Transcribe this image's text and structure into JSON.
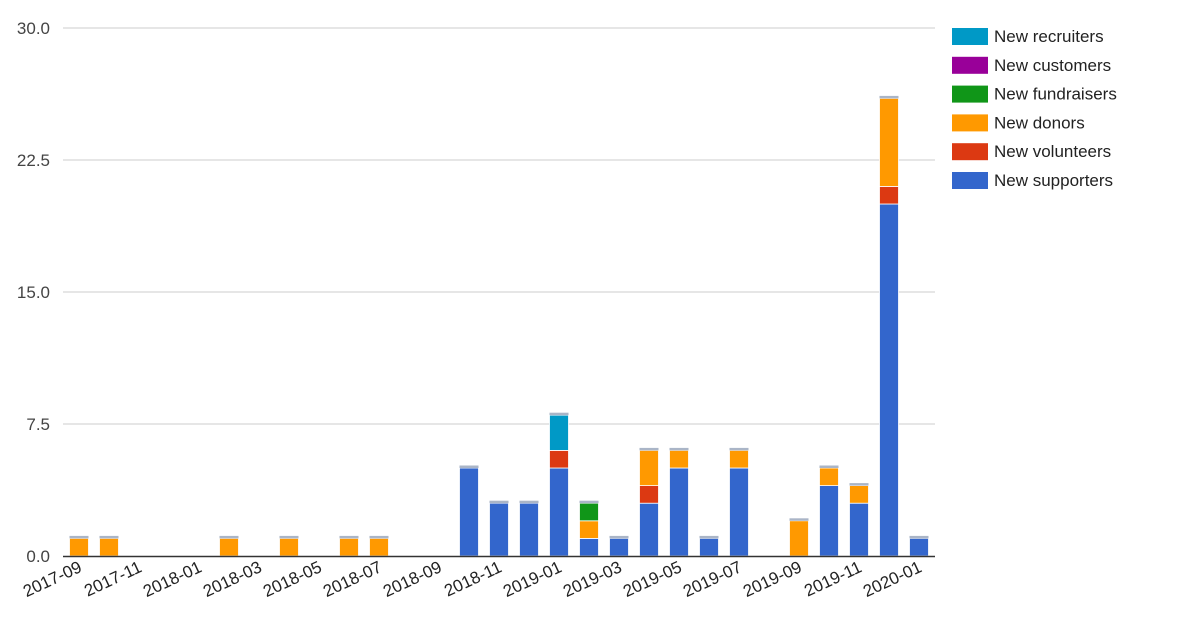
{
  "chart_data": {
    "type": "bar",
    "stacked": true,
    "title": "",
    "xlabel": "",
    "ylabel": "",
    "ylim": [
      0,
      30
    ],
    "y_ticks": [
      "0.0",
      "7.5",
      "15.0",
      "22.5",
      "30.0"
    ],
    "grid": true,
    "legend_position": "right",
    "x_tick_labels": [
      "2017-09",
      "2017-11",
      "2018-01",
      "2018-03",
      "2018-05",
      "2018-07",
      "2018-09",
      "2018-11",
      "2019-01",
      "2019-03",
      "2019-05",
      "2019-07",
      "2019-09",
      "2019-11",
      "2020-01"
    ],
    "categories": [
      "2017-09",
      "2017-10",
      "2017-11",
      "2017-12",
      "2018-01",
      "2018-02",
      "2018-03",
      "2018-04",
      "2018-05",
      "2018-06",
      "2018-07",
      "2018-08",
      "2018-09",
      "2018-10",
      "2018-11",
      "2018-12",
      "2019-01",
      "2019-02",
      "2019-03",
      "2019-04",
      "2019-05",
      "2019-06",
      "2019-07",
      "2019-08",
      "2019-09",
      "2019-10",
      "2019-11",
      "2019-12",
      "2020-01"
    ],
    "series": [
      {
        "name": "New supporters",
        "color": "#3366cc",
        "values": [
          0,
          0,
          0,
          0,
          0,
          0,
          0,
          0,
          0,
          0,
          0,
          0,
          0,
          5,
          3,
          3,
          5,
          1,
          1,
          3,
          5,
          1,
          5,
          0,
          0,
          4,
          3,
          20,
          1
        ]
      },
      {
        "name": "New volunteers",
        "color": "#dc3912",
        "values": [
          0,
          0,
          0,
          0,
          0,
          0,
          0,
          0,
          0,
          0,
          0,
          0,
          0,
          0,
          0,
          0,
          1,
          0,
          0,
          1,
          0,
          0,
          0,
          0,
          0,
          0,
          0,
          1,
          0
        ]
      },
      {
        "name": "New donors",
        "color": "#ff9900",
        "values": [
          1,
          1,
          0,
          0,
          0,
          1,
          0,
          1,
          0,
          1,
          1,
          0,
          0,
          0,
          0,
          0,
          0,
          1,
          0,
          2,
          1,
          0,
          1,
          0,
          2,
          1,
          1,
          5,
          0
        ]
      },
      {
        "name": "New fundraisers",
        "color": "#109618",
        "values": [
          0,
          0,
          0,
          0,
          0,
          0,
          0,
          0,
          0,
          0,
          0,
          0,
          0,
          0,
          0,
          0,
          0,
          1,
          0,
          0,
          0,
          0,
          0,
          0,
          0,
          0,
          0,
          0,
          0
        ]
      },
      {
        "name": "New customers",
        "color": "#990099",
        "values": [
          0,
          0,
          0,
          0,
          0,
          0,
          0,
          0,
          0,
          0,
          0,
          0,
          0,
          0,
          0,
          0,
          0,
          0,
          0,
          0,
          0,
          0,
          0,
          0,
          0,
          0,
          0,
          0,
          0
        ]
      },
      {
        "name": "New recruiters",
        "color": "#0099c6",
        "values": [
          0,
          0,
          0,
          0,
          0,
          0,
          0,
          0,
          0,
          0,
          0,
          0,
          0,
          0,
          0,
          0,
          2,
          0,
          0,
          0,
          0,
          0,
          0,
          0,
          0,
          0,
          0,
          0,
          0
        ]
      }
    ],
    "legend_order": [
      "New recruiters",
      "New customers",
      "New fundraisers",
      "New donors",
      "New volunteers",
      "New supporters"
    ]
  }
}
